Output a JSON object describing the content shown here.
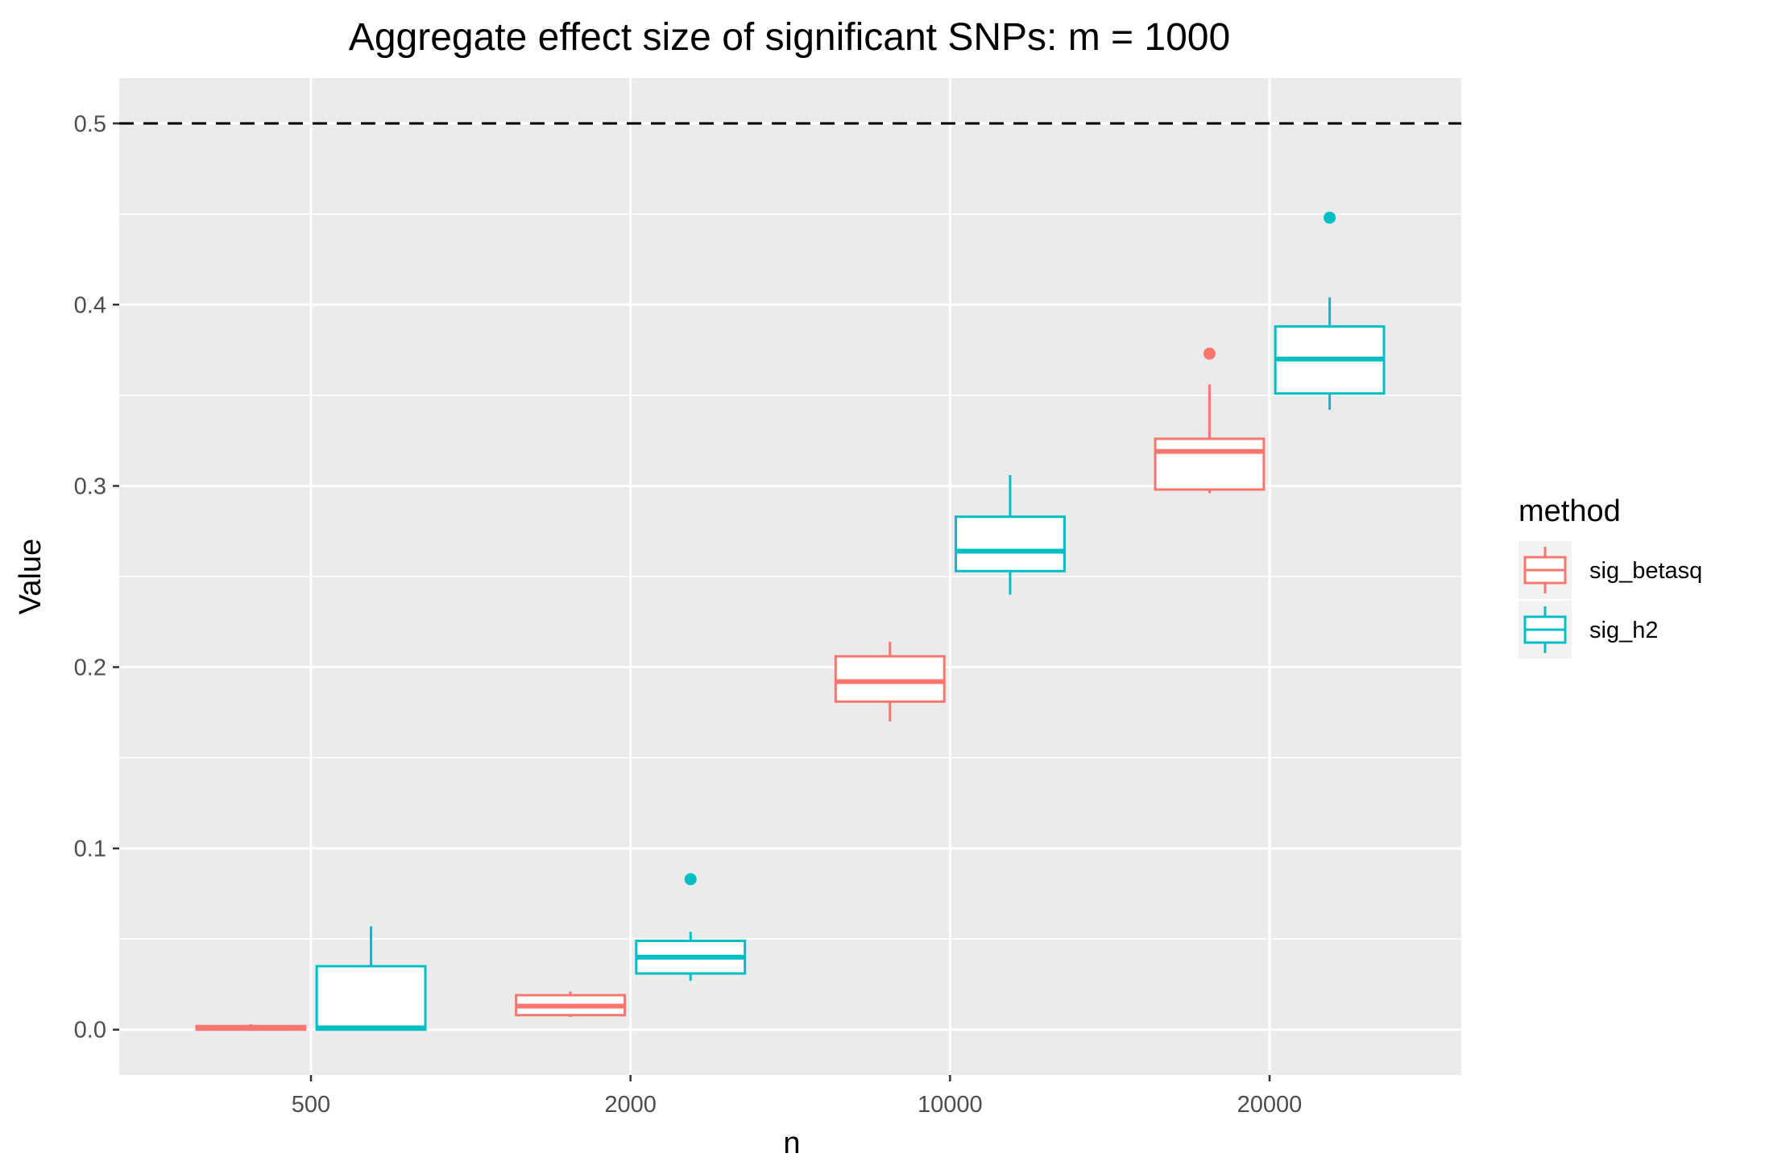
{
  "chart_data": {
    "type": "box",
    "title": "Aggregate effect size of significant SNPs: m = 1000",
    "xlabel": "n",
    "ylabel": "Value",
    "categories": [
      "500",
      "2000",
      "10000",
      "20000"
    ],
    "ylim": [
      -0.025,
      0.525
    ],
    "yticks": [
      0.0,
      0.1,
      0.2,
      0.3,
      0.4,
      0.5
    ],
    "ytick_labels": [
      "0.0",
      "0.1",
      "0.2",
      "0.3",
      "0.4",
      "0.5"
    ],
    "reference_line": {
      "y": 0.5,
      "style": "dashed",
      "color": "#000000"
    },
    "grid": true,
    "legend": {
      "title": "method",
      "position": "right"
    },
    "series": [
      {
        "name": "sig_betasq",
        "color": "#F8766D",
        "boxes": [
          {
            "category": "500",
            "whisker_low": 0.0,
            "q1": 0.0,
            "median": 0.001,
            "q3": 0.002,
            "whisker_high": 0.003,
            "outliers": []
          },
          {
            "category": "2000",
            "whisker_low": 0.007,
            "q1": 0.008,
            "median": 0.013,
            "q3": 0.019,
            "whisker_high": 0.021,
            "outliers": []
          },
          {
            "category": "10000",
            "whisker_low": 0.17,
            "q1": 0.181,
            "median": 0.192,
            "q3": 0.206,
            "whisker_high": 0.214,
            "outliers": []
          },
          {
            "category": "20000",
            "whisker_low": 0.296,
            "q1": 0.298,
            "median": 0.319,
            "q3": 0.326,
            "whisker_high": 0.356,
            "outliers": [
              0.373
            ]
          }
        ]
      },
      {
        "name": "sig_h2",
        "color": "#00BFC4",
        "boxes": [
          {
            "category": "500",
            "whisker_low": 0.0,
            "q1": 0.0,
            "median": 0.001,
            "q3": 0.035,
            "whisker_high": 0.057,
            "outliers": []
          },
          {
            "category": "2000",
            "whisker_low": 0.027,
            "q1": 0.031,
            "median": 0.04,
            "q3": 0.049,
            "whisker_high": 0.054,
            "outliers": [
              0.083
            ]
          },
          {
            "category": "10000",
            "whisker_low": 0.24,
            "q1": 0.253,
            "median": 0.264,
            "q3": 0.283,
            "whisker_high": 0.306,
            "outliers": []
          },
          {
            "category": "20000",
            "whisker_low": 0.342,
            "q1": 0.351,
            "median": 0.37,
            "q3": 0.388,
            "whisker_high": 0.404,
            "outliers": [
              0.448
            ]
          }
        ]
      }
    ]
  }
}
